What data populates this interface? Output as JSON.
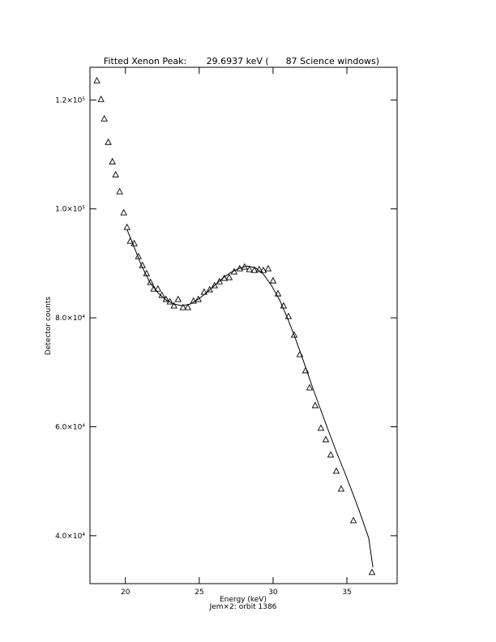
{
  "chart_data": {
    "type": "scatter",
    "title": "Fitted Xenon Peak:       29.6937 keV (      87 Science windows)",
    "subtitle": "Jem×2: orbit 1386",
    "xlabel": "Energy (keV)",
    "ylabel": "Detector counts",
    "xlim": [
      17.6,
      38.4
    ],
    "ylim": [
      31200,
      126000
    ],
    "xticks": [
      20,
      25,
      30,
      35
    ],
    "yticks": [
      {
        "value": 40000,
        "label": "4.0×10⁴"
      },
      {
        "value": 60000,
        "label": "6.0×10⁴"
      },
      {
        "value": 80000,
        "label": "8.0×10⁴"
      },
      {
        "value": 100000,
        "label": "1.0×10⁵"
      },
      {
        "value": 120000,
        "label": "1.2×10⁵"
      }
    ],
    "color": "#000000",
    "points": {
      "marker": "triangle",
      "x": [
        18.07,
        18.35,
        18.57,
        18.84,
        19.12,
        19.34,
        19.61,
        19.89,
        20.11,
        20.33,
        20.6,
        20.88,
        21.15,
        21.43,
        21.7,
        21.92,
        22.2,
        22.47,
        22.75,
        23.02,
        23.29,
        23.57,
        23.9,
        24.23,
        24.61,
        24.94,
        25.33,
        25.71,
        26.04,
        26.37,
        26.7,
        27.03,
        27.36,
        27.74,
        28.07,
        28.4,
        28.73,
        29.06,
        29.34,
        29.67,
        30.0,
        30.33,
        30.71,
        31.04,
        31.43,
        31.81,
        32.2,
        32.47,
        32.85,
        33.24,
        33.57,
        33.9,
        34.28,
        34.61,
        35.44,
        36.7
      ],
      "y": [
        123570,
        120150,
        116580,
        112270,
        108700,
        106320,
        103200,
        99330,
        96650,
        94130,
        93680,
        91300,
        89670,
        88180,
        86550,
        85350,
        85350,
        84170,
        83420,
        82980,
        82230,
        83420,
        81940,
        81940,
        83130,
        83420,
        84760,
        85210,
        85950,
        86690,
        87290,
        87440,
        88480,
        89070,
        89370,
        88920,
        88770,
        88920,
        88770,
        89070,
        86840,
        84460,
        82230,
        80300,
        76880,
        73310,
        70340,
        67210,
        63940,
        59780,
        57690,
        54870,
        51890,
        48620,
        42820,
        33310
      ]
    },
    "fit": {
      "x": [
        20.11,
        20.55,
        21.1,
        21.65,
        22.2,
        22.75,
        23.29,
        23.84,
        24.39,
        24.94,
        25.49,
        26.04,
        26.59,
        27.14,
        27.69,
        28.24,
        28.79,
        29.34,
        29.89,
        30.44,
        30.99,
        31.54,
        32.09,
        32.64,
        33.19,
        33.74,
        34.28,
        34.83,
        35.38,
        35.93,
        36.48,
        36.76
      ],
      "y": [
        96200,
        93240,
        89520,
        86550,
        84610,
        83270,
        82530,
        82230,
        82530,
        83420,
        84610,
        85950,
        87290,
        88330,
        89070,
        89520,
        89220,
        88030,
        85950,
        83270,
        79850,
        75980,
        71820,
        67510,
        63340,
        59330,
        55460,
        51740,
        47880,
        43860,
        39550,
        34200
      ]
    }
  }
}
